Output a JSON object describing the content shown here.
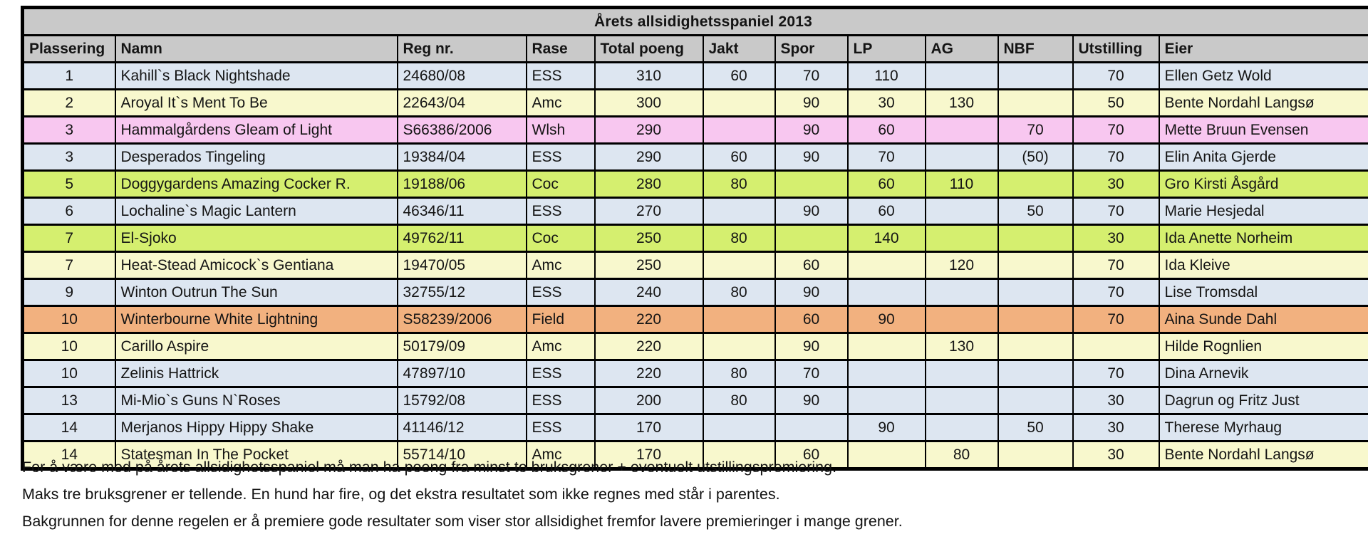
{
  "title": "Årets allsidighetsspaniel 2013",
  "colors": {
    "header_gray": "#c9c9c9",
    "row_blue": "#dde6f1",
    "row_yellow": "#f8f8cd",
    "row_pink": "#f8c7f0",
    "row_green": "#d5ef6f",
    "row_orange": "#f2b17f",
    "border_black": "#000000"
  },
  "columns": [
    {
      "key": "plassering",
      "label": "Plassering"
    },
    {
      "key": "namn",
      "label": "Namn"
    },
    {
      "key": "regnr",
      "label": "Reg nr."
    },
    {
      "key": "rase",
      "label": "Rase"
    },
    {
      "key": "total-poeng",
      "label": "Total poeng"
    },
    {
      "key": "jakt",
      "label": "Jakt"
    },
    {
      "key": "spor",
      "label": "Spor"
    },
    {
      "key": "lp",
      "label": "LP"
    },
    {
      "key": "ag",
      "label": "AG"
    },
    {
      "key": "nbf",
      "label": "NBF"
    },
    {
      "key": "utstilling",
      "label": "Utstilling"
    },
    {
      "key": "eier",
      "label": "Eier"
    }
  ],
  "rows": [
    {
      "color": "row_blue",
      "cells": [
        "1",
        "Kahill`s Black Nightshade",
        "24680/08",
        "ESS",
        "310",
        "60",
        "70",
        "110",
        "",
        "",
        "70",
        "Ellen Getz Wold"
      ]
    },
    {
      "color": "row_yellow",
      "cells": [
        "2",
        "Aroyal It`s Ment To Be",
        "22643/04",
        "Amc",
        "300",
        "",
        "90",
        "30",
        "130",
        "",
        "50",
        "Bente Nordahl Langsø"
      ]
    },
    {
      "color": "row_pink",
      "cells": [
        "3",
        "Hammalgårdens Gleam of Light",
        "S66386/2006",
        "Wlsh",
        "290",
        "",
        "90",
        "60",
        "",
        "70",
        "70",
        "Mette Bruun Evensen"
      ]
    },
    {
      "color": "row_blue",
      "cells": [
        "3",
        "Desperados Tingeling",
        "19384/04",
        "ESS",
        "290",
        "60",
        "90",
        "70",
        "",
        "(50)",
        "70",
        "Elin Anita Gjerde"
      ]
    },
    {
      "color": "row_green",
      "cells": [
        "5",
        "Doggygardens Amazing Cocker R.",
        "19188/06",
        "Coc",
        "280",
        "80",
        "",
        "60",
        "110",
        "",
        "30",
        "Gro Kirsti Åsgård"
      ]
    },
    {
      "color": "row_blue",
      "cells": [
        "6",
        "Lochaline`s Magic Lantern",
        "46346/11",
        "ESS",
        "270",
        "",
        "90",
        "60",
        "",
        "50",
        "70",
        "Marie Hesjedal"
      ]
    },
    {
      "color": "row_green",
      "cells": [
        "7",
        "El-Sjoko",
        "49762/11",
        "Coc",
        "250",
        "80",
        "",
        "140",
        "",
        "",
        "30",
        "Ida Anette Norheim"
      ]
    },
    {
      "color": "row_yellow",
      "cells": [
        "7",
        "Heat-Stead Amicock`s Gentiana",
        "19470/05",
        "Amc",
        "250",
        "",
        "60",
        "",
        "120",
        "",
        "70",
        "Ida Kleive"
      ]
    },
    {
      "color": "row_blue",
      "cells": [
        "9",
        "Winton Outrun The Sun",
        "32755/12",
        "ESS",
        "240",
        "80",
        "90",
        "",
        "",
        "",
        "70",
        "Lise Tromsdal"
      ]
    },
    {
      "color": "row_orange",
      "cells": [
        "10",
        "Winterbourne White Lightning",
        "S58239/2006",
        "Field",
        "220",
        "",
        "60",
        "90",
        "",
        "",
        "70",
        "Aina Sunde Dahl"
      ]
    },
    {
      "color": "row_yellow",
      "cells": [
        "10",
        "Carillo Aspire",
        "50179/09",
        "Amc",
        "220",
        "",
        "90",
        "",
        "130",
        "",
        "",
        "Hilde Rognlien"
      ]
    },
    {
      "color": "row_blue",
      "cells": [
        "10",
        "Zelinis Hattrick",
        "47897/10",
        "ESS",
        "220",
        "80",
        "70",
        "",
        "",
        "",
        "70",
        "Dina Arnevik"
      ]
    },
    {
      "color": "row_blue",
      "cells": [
        "13",
        "Mi-Mio`s Guns N`Roses",
        "15792/08",
        "ESS",
        "200",
        "80",
        "90",
        "",
        "",
        "",
        "30",
        "Dagrun og Fritz Just"
      ]
    },
    {
      "color": "row_blue",
      "cells": [
        "14",
        "Merjanos Hippy Hippy Shake",
        "41146/12",
        "ESS",
        "170",
        "",
        "",
        "90",
        "",
        "50",
        "30",
        "Therese Myrhaug"
      ]
    },
    {
      "color": "row_yellow",
      "cells": [
        "14",
        "Statesman In The Pocket",
        "55714/10",
        "Amc",
        "170",
        "",
        "60",
        "",
        "80",
        "",
        "30",
        "Bente Nordahl Langsø"
      ]
    }
  ],
  "notes": [
    "For å være med på årets allsidighetsspaniel må man ha poeng fra minst to bruksgrener + eventuelt utstillingspremiering.",
    "Maks tre bruksgrener er tellende. En hund har fire, og det ekstra resultatet som ikke regnes med står i parentes.",
    "Bakgrunnen for denne regelen er å premiere gode resultater som viser stor allsidighet fremfor lavere premieringer i mange grener."
  ]
}
